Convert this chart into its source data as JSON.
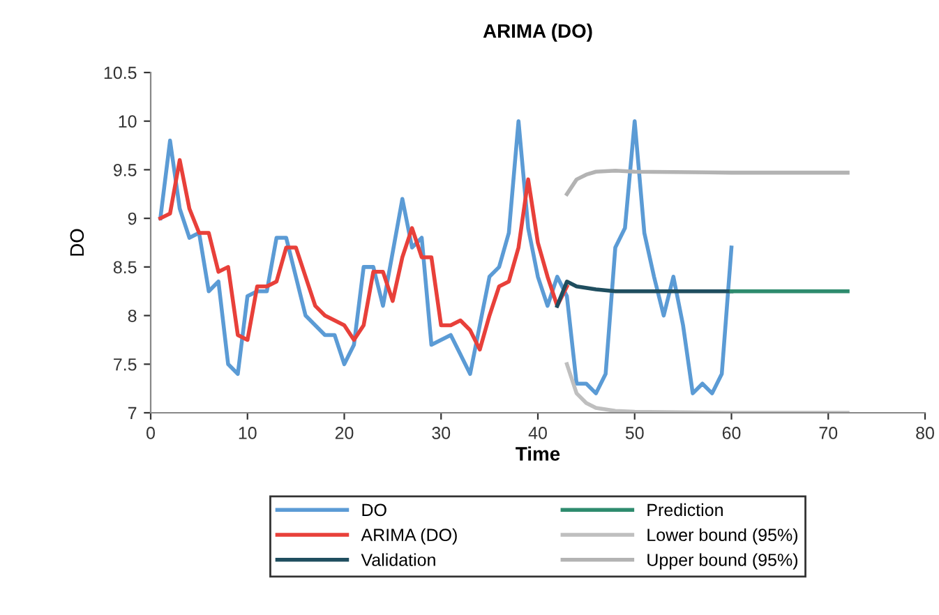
{
  "chart_data": {
    "type": "line",
    "title": "ARIMA (DO)",
    "xlabel": "Time",
    "ylabel": "DO",
    "xlim": [
      0,
      80
    ],
    "xticks": [
      0,
      10,
      20,
      30,
      40,
      50,
      60,
      70,
      80
    ],
    "ylim": [
      7,
      10.5
    ],
    "yticks": [
      7,
      7.5,
      8,
      8.5,
      9,
      9.5,
      10,
      10.5
    ],
    "grid": false,
    "legend": "bottom",
    "marker": "none",
    "line_style": "solid",
    "series": [
      {
        "name": "DO",
        "color": "#5b9bd5",
        "x": [
          1,
          2,
          3,
          4,
          5,
          6,
          7,
          8,
          9,
          10,
          11,
          12,
          13,
          14,
          15,
          16,
          17,
          18,
          19,
          20,
          21,
          22,
          23,
          24,
          25,
          26,
          27,
          28,
          29,
          30,
          31,
          32,
          33,
          34,
          35,
          36,
          37,
          38,
          39,
          40,
          41,
          42,
          43,
          44,
          45,
          46,
          47,
          48,
          49,
          50,
          51,
          52,
          53,
          54,
          55,
          56,
          57,
          58,
          59,
          60
        ],
        "values": [
          9.0,
          9.8,
          9.1,
          8.8,
          8.85,
          8.25,
          8.35,
          7.5,
          7.4,
          8.2,
          8.25,
          8.25,
          8.8,
          8.8,
          8.4,
          8.0,
          7.9,
          7.8,
          7.8,
          7.5,
          7.7,
          8.5,
          8.5,
          8.1,
          8.65,
          9.2,
          8.7,
          8.8,
          7.7,
          7.75,
          7.8,
          7.6,
          7.4,
          7.9,
          8.4,
          8.5,
          8.85,
          10.0,
          8.9,
          8.4,
          8.1,
          8.4,
          8.2,
          7.3,
          7.3,
          7.2,
          7.4,
          8.7,
          8.9,
          10.0,
          8.85,
          8.4,
          8.0,
          8.4,
          7.9,
          7.2,
          7.3,
          7.2,
          7.4,
          8.7
        ]
      },
      {
        "name": "ARIMA (DO)",
        "color": "#e8403a",
        "x": [
          1,
          2,
          3,
          4,
          5,
          6,
          7,
          8,
          9,
          10,
          11,
          12,
          13,
          14,
          15,
          16,
          17,
          18,
          19,
          20,
          21,
          22,
          23,
          24,
          25,
          26,
          27,
          28,
          29,
          30,
          31,
          32,
          33,
          34,
          35,
          36,
          37,
          38,
          39,
          40,
          41,
          42,
          43
        ],
        "values": [
          9.0,
          9.05,
          9.6,
          9.1,
          8.85,
          8.85,
          8.45,
          8.5,
          7.8,
          7.75,
          8.3,
          8.3,
          8.35,
          8.7,
          8.7,
          8.4,
          8.1,
          8.0,
          7.95,
          7.9,
          7.75,
          7.9,
          8.45,
          8.45,
          8.15,
          8.6,
          8.9,
          8.6,
          8.6,
          7.9,
          7.9,
          7.95,
          7.85,
          7.65,
          8.0,
          8.3,
          8.35,
          8.7,
          9.4,
          8.75,
          8.4,
          8.1,
          8.3
        ]
      },
      {
        "name": "Validation",
        "color": "#1f4e5f",
        "x": [
          42,
          43,
          44,
          46,
          48,
          50,
          55,
          60
        ],
        "values": [
          8.1,
          8.35,
          8.3,
          8.27,
          8.25,
          8.25,
          8.25,
          8.25
        ]
      },
      {
        "name": "Prediction",
        "color": "#2e8b6e",
        "x": [
          60,
          66,
          72
        ],
        "values": [
          8.25,
          8.25,
          8.25
        ]
      },
      {
        "name": "Lower bound (95%)",
        "color": "#bfbfbf",
        "x": [
          43,
          44,
          45,
          46,
          48,
          50,
          60,
          72
        ],
        "values": [
          7.5,
          7.2,
          7.1,
          7.05,
          7.02,
          7.01,
          7.0,
          7.0
        ]
      },
      {
        "name": "Upper bound (95%)",
        "color": "#b3b3b3",
        "x": [
          43,
          44,
          45,
          46,
          48,
          50,
          60,
          72
        ],
        "values": [
          9.25,
          9.4,
          9.45,
          9.48,
          9.49,
          9.48,
          9.47,
          9.47
        ]
      }
    ]
  }
}
